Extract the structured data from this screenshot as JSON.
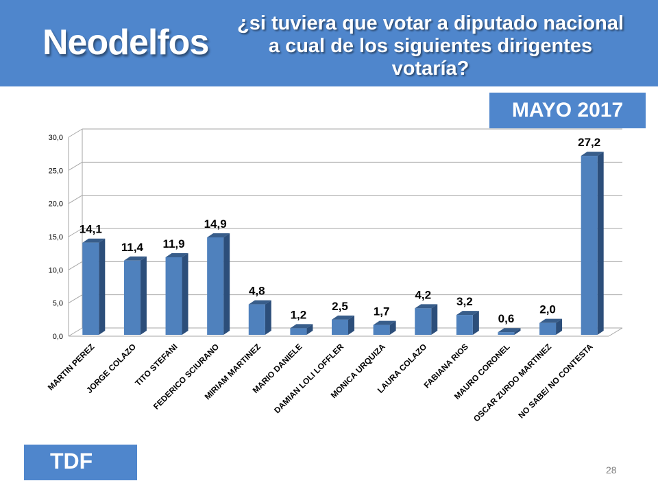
{
  "header": {
    "brand": "Neodelfos",
    "question_lines": [
      "¿si tuviera que votar a diputado nacional",
      "a cual de los siguientes dirigentes",
      "votaría?"
    ]
  },
  "date_badge": "MAYO 2017",
  "region_badge": "TDF",
  "page_number": "28",
  "colors": {
    "header": "#4f86cc",
    "bar_front": "#4f81bd",
    "bar_side": "#2c4e7a",
    "bar_top": "#385d8a"
  },
  "chart_data": {
    "type": "bar",
    "categories": [
      "MARTIN PEREZ",
      "JORGE COLAZO",
      "TITO STEFANI",
      "FEDERICO SCIURANO",
      "MIRIAM MARTINEZ",
      "MARIO DANIELE",
      "DAMIAN LOLI LOFFLER",
      "MONICA URQUIZA",
      "LAURA COLAZO",
      "FABIANA RIOS",
      "MAURO CORONEL",
      "OSCAR ZURDO MARTINEZ",
      "NO SABE/ NO CONTESTA"
    ],
    "values": [
      14.1,
      11.4,
      11.9,
      14.9,
      4.8,
      1.2,
      2.5,
      1.7,
      4.2,
      3.2,
      0.6,
      2.0,
      27.2
    ],
    "value_labels": [
      "14,1",
      "11,4",
      "11,9",
      "14,9",
      "4,8",
      "1,2",
      "2,5",
      "1,7",
      "4,2",
      "3,2",
      "0,6",
      "2,0",
      "27,2"
    ],
    "yticks": [
      0,
      5,
      10,
      15,
      20,
      25,
      30
    ],
    "ytick_labels": [
      "0,0",
      "5,0",
      "10,0",
      "15,0",
      "20,0",
      "25,0",
      "30,0"
    ],
    "ylim": [
      0,
      30
    ],
    "grid": true,
    "style": "3d-column"
  }
}
